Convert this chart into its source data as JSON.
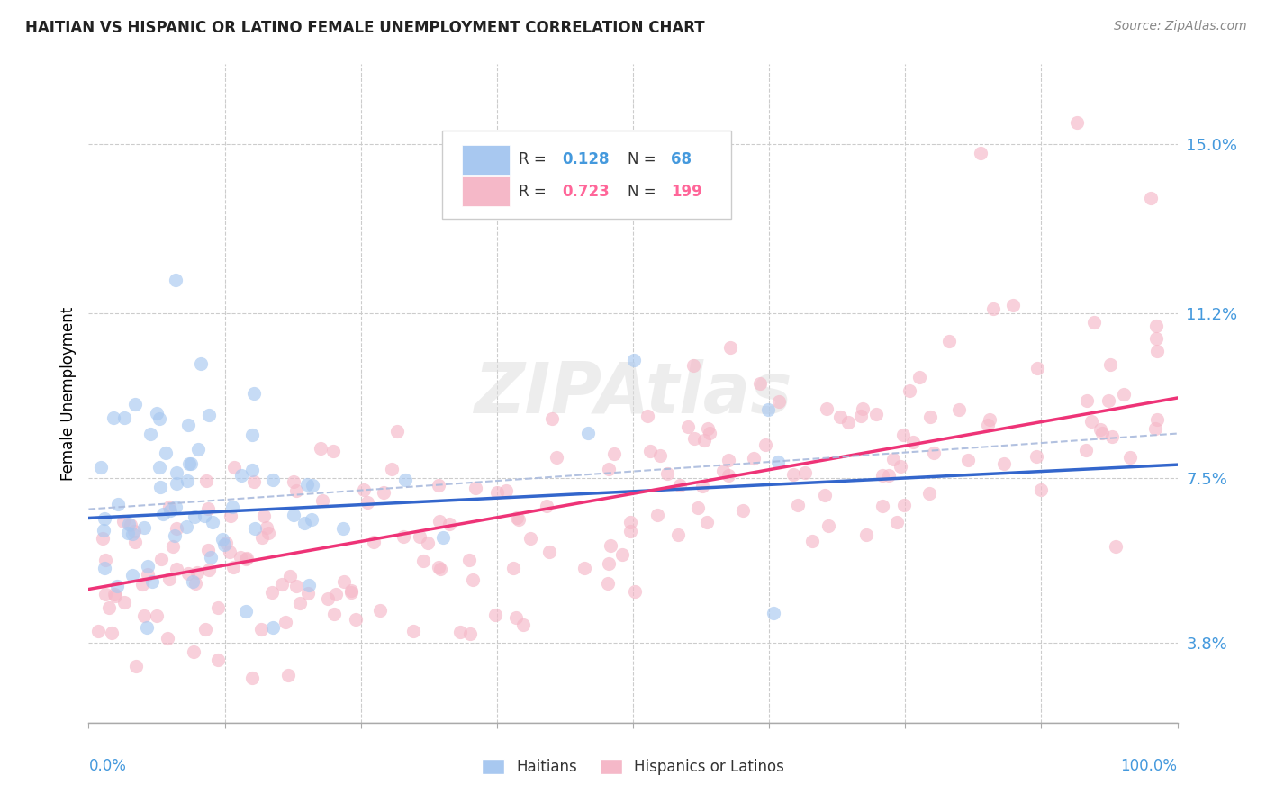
{
  "title": "HAITIAN VS HISPANIC OR LATINO FEMALE UNEMPLOYMENT CORRELATION CHART",
  "source": "Source: ZipAtlas.com",
  "ylabel": "Female Unemployment",
  "ytick_labels": [
    "3.8%",
    "7.5%",
    "11.2%",
    "15.0%"
  ],
  "ytick_values": [
    0.038,
    0.075,
    0.112,
    0.15
  ],
  "xlim": [
    0.0,
    1.0
  ],
  "ylim": [
    0.02,
    0.168
  ],
  "color_blue": "#A8C8F0",
  "color_pink": "#F5B8C8",
  "color_blue_text": "#4499DD",
  "color_pink_text": "#FF6699",
  "color_line_blue": "#3366CC",
  "color_line_pink": "#EE3377",
  "color_dashed": "#AABBDD",
  "watermark_color": "#DDDDDD",
  "grid_color": "#CCCCCC",
  "haitian_line_start_y": 0.066,
  "haitian_line_end_y": 0.078,
  "hispanic_line_start_y": 0.05,
  "hispanic_line_end_y": 0.093,
  "dashed_line_start_x": 0.0,
  "dashed_line_start_y": 0.068,
  "dashed_line_end_x": 1.0,
  "dashed_line_end_y": 0.085
}
